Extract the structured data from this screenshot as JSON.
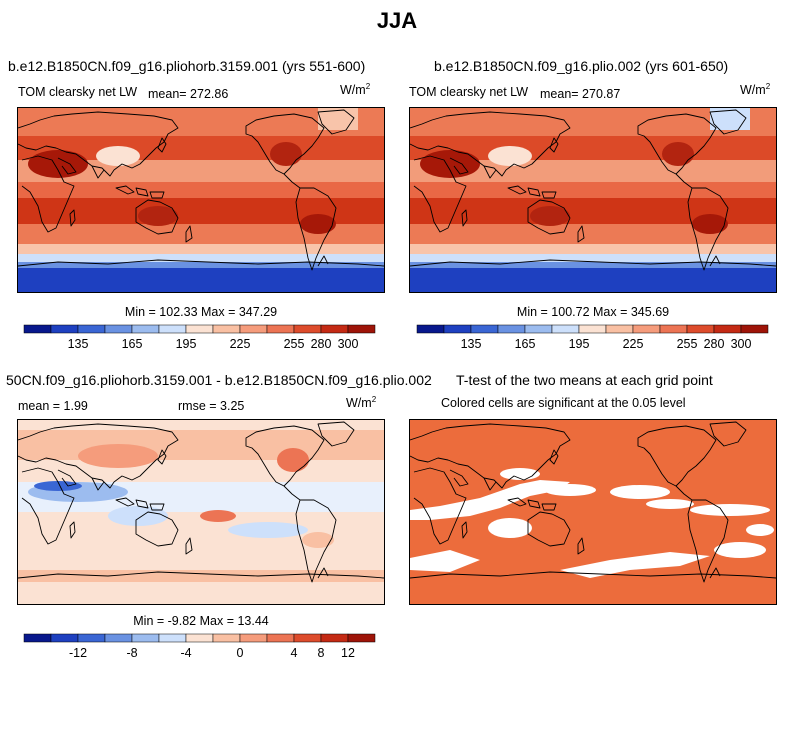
{
  "title": "JJA",
  "panels": [
    {
      "id": "p1",
      "title": "b.e12.B1850CN.f09_g16.pliohorb.3159.001 (yrs 551-600)",
      "variable": "TOM clearsky net LW",
      "mean_label": "mean= 272.86",
      "units": "W/m",
      "units_sup": "2",
      "min_max": "Min = 102.33 Max = 347.29"
    },
    {
      "id": "p2",
      "title": "b.e12.B1850CN.f09_g16.plio.002 (yrs 601-650)",
      "variable": "TOM clearsky net LW",
      "mean_label": "mean= 270.87",
      "units": "W/m",
      "units_sup": "2",
      "min_max": "Min = 100.72 Max = 345.69"
    },
    {
      "id": "p3",
      "title": "50CN.f09_g16.pliohorb.3159.001 - b.e12.B1850CN.f09_g16.plio.002",
      "mean_label": "mean =    1.99",
      "rmse_label": "rmse =    3.25",
      "units": "W/m",
      "units_sup": "2",
      "min_max": "Min =   -9.82 Max =   13.44"
    },
    {
      "id": "p4",
      "title": "T-test of the two means at each grid point",
      "subtitle": "Colored cells are significant at the 0.05 level"
    }
  ],
  "colorbars": {
    "absolute": {
      "colors": [
        "#08188c",
        "#1e40c0",
        "#3a66d4",
        "#6a92e2",
        "#9cbcef",
        "#cde0fb",
        "#fbe2d3",
        "#f9c0a3",
        "#f59c7c",
        "#ec7454",
        "#dd4c2c",
        "#c42a14",
        "#9e1408"
      ],
      "tick_labels": [
        "135",
        "165",
        "195",
        "225",
        "255",
        "280",
        "300"
      ]
    },
    "difference": {
      "colors": [
        "#08188c",
        "#1e40c0",
        "#3a66d4",
        "#6a92e2",
        "#9cbcef",
        "#cde0fb",
        "#fbe2d3",
        "#f9c0a3",
        "#f59c7c",
        "#ec7454",
        "#dd4c2c",
        "#c42a14",
        "#9e1408"
      ],
      "tick_labels": [
        "-12",
        "-8",
        "-4",
        "0",
        "4",
        "8",
        "12"
      ]
    }
  },
  "colors": {
    "significant": "#ec6c3c",
    "not_significant": "#ffffff",
    "coastline": "#000000"
  },
  "chart_data": [
    {
      "type": "heatmap",
      "title": "b.e12.B1850CN.f09_g16.pliohorb.3159.001 (yrs 551-600)",
      "subtitle": "TOM clearsky net LW",
      "mean": 272.86,
      "min": 102.33,
      "max": 347.29,
      "units": "W/m2",
      "colorbar_ticks": [
        135,
        165,
        195,
        225,
        255,
        280,
        300
      ]
    },
    {
      "type": "heatmap",
      "title": "b.e12.B1850CN.f09_g16.plio.002 (yrs 601-650)",
      "subtitle": "TOM clearsky net LW",
      "mean": 270.87,
      "min": 100.72,
      "max": 345.69,
      "units": "W/m2",
      "colorbar_ticks": [
        135,
        165,
        195,
        225,
        255,
        280,
        300
      ]
    },
    {
      "type": "heatmap",
      "title": "50CN.f09_g16.pliohorb.3159.001 - b.e12.B1850CN.f09_g16.plio.002",
      "mean": 1.99,
      "rmse": 3.25,
      "min": -9.82,
      "max": 13.44,
      "units": "W/m2",
      "colorbar_ticks": [
        -12,
        -8,
        -4,
        0,
        4,
        8,
        12
      ]
    },
    {
      "type": "heatmap",
      "title": "T-test of the two means at each grid point",
      "subtitle": "Colored cells are significant at the 0.05 level"
    }
  ]
}
